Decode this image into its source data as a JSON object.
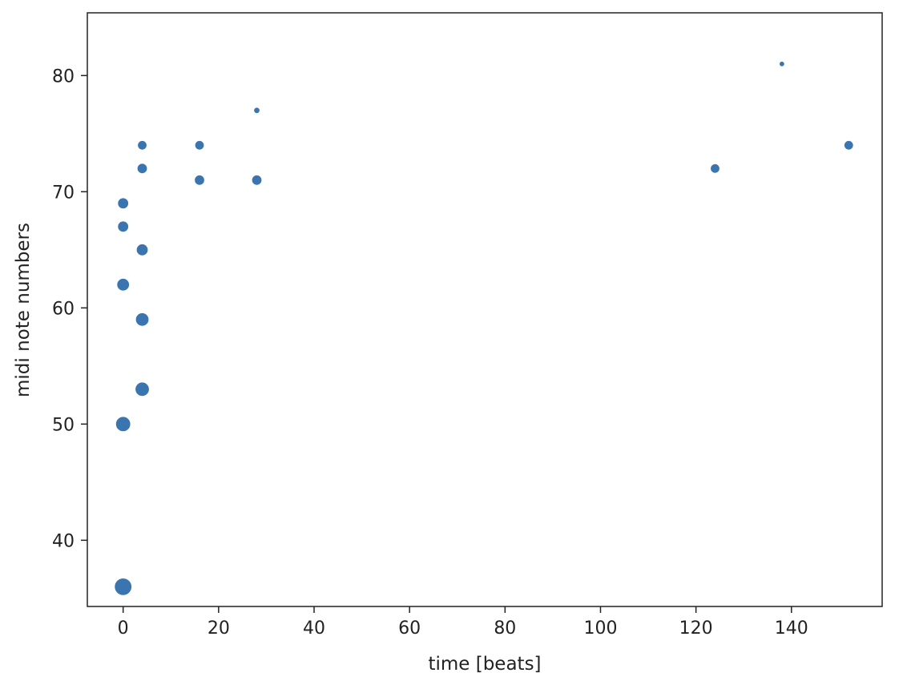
{
  "chart_data": {
    "type": "scatter",
    "title": "",
    "xlabel": "time [beats]",
    "ylabel": "midi note numbers",
    "xlim": [
      -7.5,
      159
    ],
    "ylim": [
      34.3,
      85.4
    ],
    "xticks": [
      0,
      20,
      40,
      60,
      80,
      100,
      120,
      140
    ],
    "yticks": [
      40,
      50,
      60,
      70,
      80
    ],
    "grid": false,
    "marker_color": "#3a75b0",
    "marker_edge_color": "#ffffff",
    "points": [
      {
        "x": 0,
        "y": 36,
        "size": 11
      },
      {
        "x": 0,
        "y": 50,
        "size": 9.5
      },
      {
        "x": 0,
        "y": 62,
        "size": 8
      },
      {
        "x": 0,
        "y": 67,
        "size": 7
      },
      {
        "x": 0,
        "y": 69,
        "size": 7
      },
      {
        "x": 4,
        "y": 53,
        "size": 9
      },
      {
        "x": 4,
        "y": 59,
        "size": 8.5
      },
      {
        "x": 4,
        "y": 65,
        "size": 7.5
      },
      {
        "x": 4,
        "y": 72,
        "size": 6.5
      },
      {
        "x": 4,
        "y": 74,
        "size": 6
      },
      {
        "x": 16,
        "y": 71,
        "size": 6.5
      },
      {
        "x": 16,
        "y": 74,
        "size": 6
      },
      {
        "x": 28,
        "y": 71,
        "size": 6.5
      },
      {
        "x": 28,
        "y": 77,
        "size": 4
      },
      {
        "x": 124,
        "y": 72,
        "size": 6
      },
      {
        "x": 138,
        "y": 81,
        "size": 3.5
      },
      {
        "x": 152,
        "y": 74,
        "size": 6
      }
    ]
  }
}
